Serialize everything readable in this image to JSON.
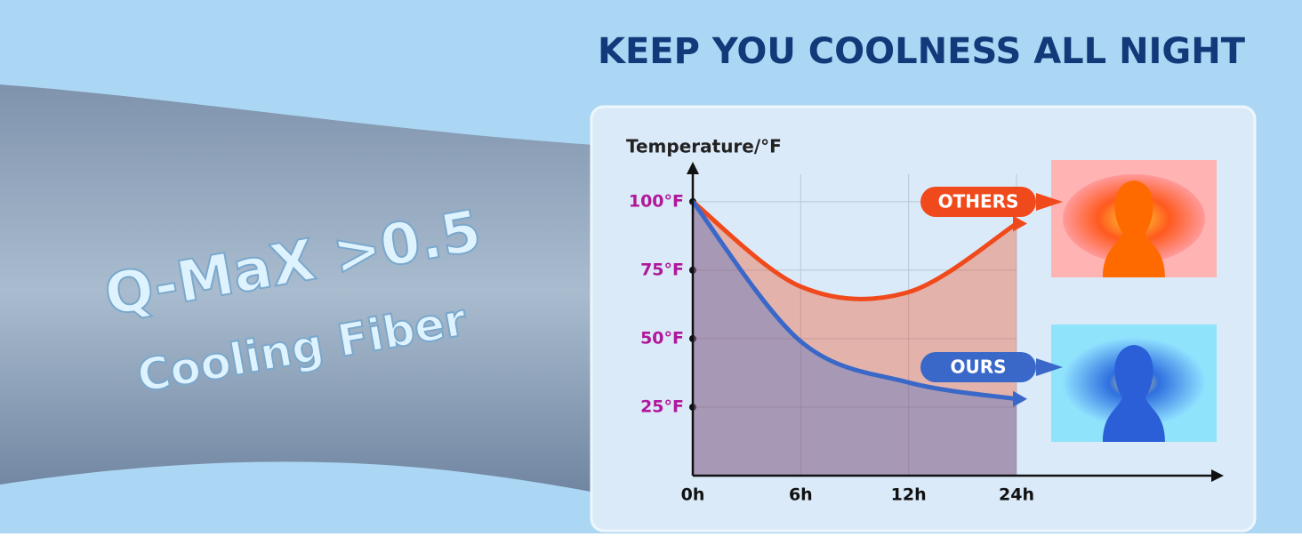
{
  "chart_data": {
    "type": "line",
    "title": "KEEP YOU COOLNESS ALL NIGHT",
    "y_label": "Temperature/°F",
    "annotations": [
      "Q-MaX >0.5",
      "Cooling Fiber"
    ],
    "categories": [
      "0h",
      "6h",
      "12h",
      "24h"
    ],
    "series": [
      {
        "name": "OTHERS",
        "color": "#f04a1c",
        "values": [
          100,
          69,
          67,
          92
        ]
      },
      {
        "name": "OURS",
        "color": "#3a68c8",
        "values": [
          100,
          49,
          34,
          28
        ]
      }
    ],
    "ylim": [
      0,
      110
    ],
    "yticks": [
      {
        "value": 25,
        "label": "25°F"
      },
      {
        "value": 50,
        "label": "50°F"
      },
      {
        "value": 75,
        "label": "75°F"
      },
      {
        "value": 100,
        "label": "100°F"
      }
    ],
    "grid": true
  }
}
